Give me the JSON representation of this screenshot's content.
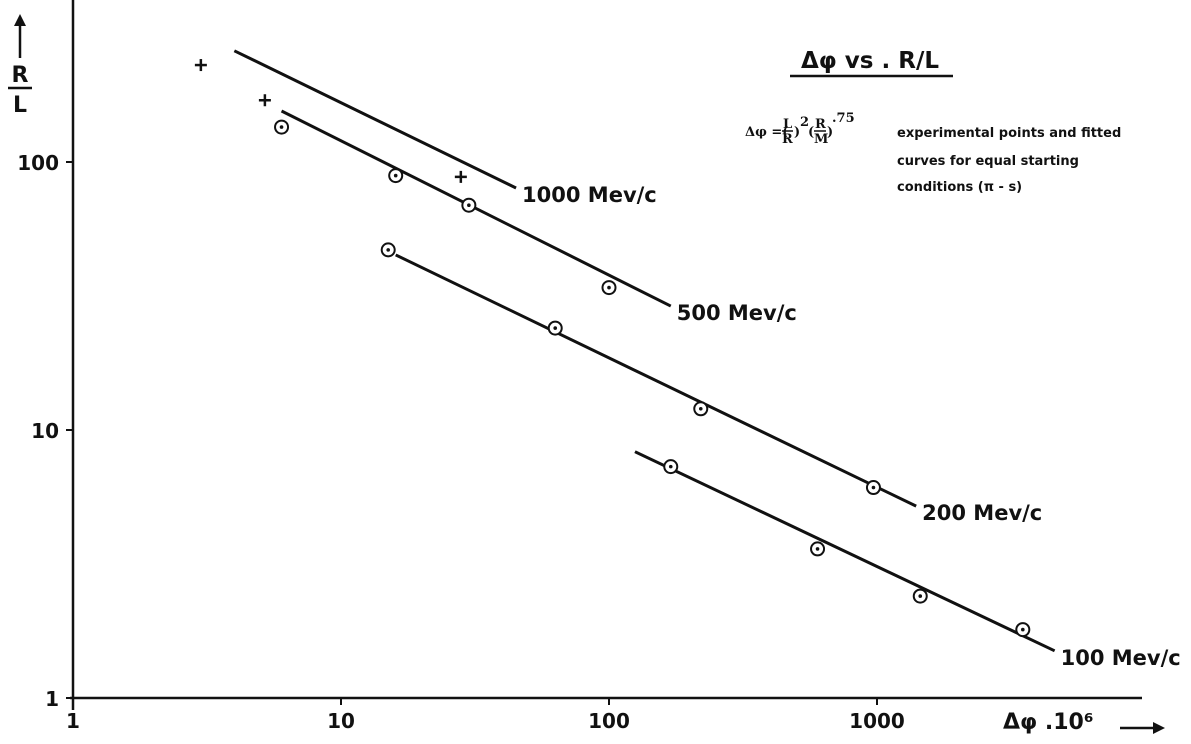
{
  "chart_data": {
    "type": "scatter",
    "title": "Δφ vs . R/L",
    "xlabel": "Δφ .10⁶",
    "ylabel": "R/L",
    "xscale": "log",
    "yscale": "log",
    "xlim": [
      1,
      10000
    ],
    "ylim": [
      1,
      400
    ],
    "x_ticks": [
      "1",
      "10",
      "100",
      "1000"
    ],
    "y_ticks": [
      "1",
      "10",
      "100"
    ],
    "grid": false,
    "annotation": {
      "formula": "Δφ = (L/R)² (R/M)^.75",
      "lines": [
        "experimental points and fitted",
        "curves for equal starting",
        "conditions        (π - s)"
      ]
    },
    "series": [
      {
        "name": "1000 Mev/c",
        "marker": "plus",
        "points": [
          [
            3,
            230
          ],
          [
            5.2,
            170
          ],
          [
            28,
            88
          ]
        ],
        "fit": [
          [
            4,
            260
          ],
          [
            45,
            80
          ]
        ]
      },
      {
        "name": "500 Mev/c",
        "marker": "circle-dot",
        "points": [
          [
            6,
            135
          ],
          [
            16,
            89
          ],
          [
            30,
            69
          ],
          [
            100,
            34
          ]
        ],
        "fit": [
          [
            6,
            155
          ],
          [
            170,
            29
          ]
        ]
      },
      {
        "name": "200 Mev/c",
        "marker": "circle-dot",
        "points": [
          [
            15,
            47
          ],
          [
            63,
            24
          ],
          [
            220,
            12
          ],
          [
            970,
            6.1
          ]
        ],
        "fit": [
          [
            16,
            45
          ],
          [
            1400,
            5.2
          ]
        ]
      },
      {
        "name": "100 Mev/c",
        "marker": "circle-dot",
        "points": [
          [
            170,
            7.3
          ],
          [
            600,
            3.6
          ],
          [
            1450,
            2.4
          ],
          [
            3500,
            1.8
          ]
        ],
        "fit": [
          [
            125,
            8.3
          ],
          [
            4600,
            1.5
          ]
        ]
      }
    ]
  }
}
